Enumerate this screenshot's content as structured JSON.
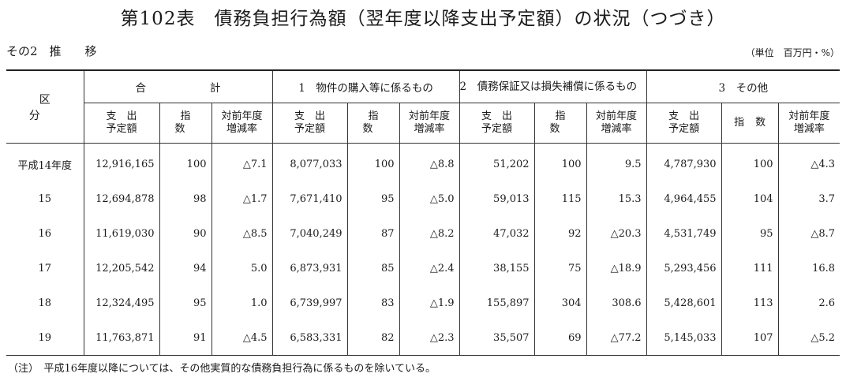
{
  "title": "第102表　債務負担行為額（翌年度以降支出予定額）の状況（つづき）",
  "subtitle": "その2　推　　移",
  "unit": "（単位　百万円・%）",
  "header": {
    "kubun": "区分",
    "groups": [
      "合　　　　　　計",
      "1　物件の購入等に係るもの",
      "2　債務保証又は損失補償に係るもの",
      "3　その他"
    ],
    "sub": {
      "amount_l1": "支　出",
      "amount_l2": "予定額",
      "index": "指数",
      "rate_l1": "対前年度",
      "rate_l2": "増減率"
    }
  },
  "rows": [
    {
      "year": "平成14年度",
      "c": [
        "12,916,165",
        "100",
        "△7.1",
        "8,077,033",
        "100",
        "△8.8",
        "51,202",
        "100",
        "9.5",
        "4,787,930",
        "100",
        "△4.3"
      ]
    },
    {
      "year": "15",
      "c": [
        "12,694,878",
        "98",
        "△1.7",
        "7,671,410",
        "95",
        "△5.0",
        "59,013",
        "115",
        "15.3",
        "4,964,455",
        "104",
        "3.7"
      ]
    },
    {
      "year": "16",
      "c": [
        "11,619,030",
        "90",
        "△8.5",
        "7,040,249",
        "87",
        "△8.2",
        "47,032",
        "92",
        "△20.3",
        "4,531,749",
        "95",
        "△8.7"
      ]
    },
    {
      "year": "17",
      "c": [
        "12,205,542",
        "94",
        "5.0",
        "6,873,931",
        "85",
        "△2.4",
        "38,155",
        "75",
        "△18.9",
        "5,293,456",
        "111",
        "16.8"
      ]
    },
    {
      "year": "18",
      "c": [
        "12,324,495",
        "95",
        "1.0",
        "6,739,997",
        "83",
        "△1.9",
        "155,897",
        "304",
        "308.6",
        "5,428,601",
        "113",
        "2.6"
      ]
    },
    {
      "year": "19",
      "c": [
        "11,763,871",
        "91",
        "△4.5",
        "6,583,331",
        "82",
        "△2.3",
        "35,507",
        "69",
        "△77.2",
        "5,145,033",
        "107",
        "△5.2"
      ]
    }
  ],
  "note": "（注）　平成16年度以降については、その他実質的な債務負担行為に係るものを除いている。"
}
